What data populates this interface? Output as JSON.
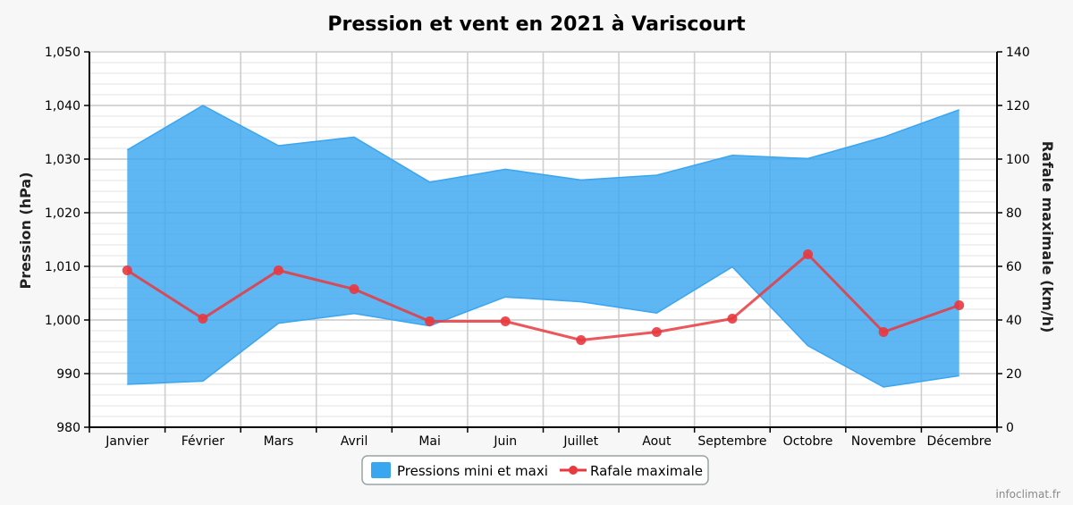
{
  "chart_data": {
    "type": "area",
    "title": "Pression et vent en 2021 à Variscourt",
    "categories": [
      "Janvier",
      "Février",
      "Mars",
      "Avril",
      "Mai",
      "Juin",
      "Juillet",
      "Aout",
      "Septembre",
      "Octobre",
      "Novembre",
      "Décembre"
    ],
    "y_left": {
      "label": "Pression (hPa)",
      "lim": [
        980,
        1050
      ],
      "ticks": [
        980,
        990,
        1000,
        1010,
        1020,
        1030,
        1040,
        1050
      ],
      "tick_labels": [
        "980",
        "990",
        "1,000",
        "1,010",
        "1,020",
        "1,030",
        "1,040",
        "1,050"
      ]
    },
    "y_right": {
      "label": "Rafale maximale (km/h)",
      "lim": [
        0,
        140
      ],
      "ticks": [
        0,
        20,
        40,
        60,
        80,
        100,
        120,
        140
      ],
      "tick_labels": [
        "0",
        "20",
        "40",
        "60",
        "80",
        "100",
        "120",
        "140"
      ]
    },
    "series": [
      {
        "name": "Pressions mini et maxi",
        "kind": "range-area",
        "axis": "left",
        "color": "#3aa6f0",
        "min": [
          988,
          988.6,
          999.4,
          1001.2,
          998.9,
          1004.3,
          1003.4,
          1001.3,
          1009.9,
          995.2,
          987.5,
          989.6
        ],
        "max": [
          1031.7,
          1040,
          1032.5,
          1034.1,
          1025.7,
          1028.1,
          1026.1,
          1027,
          1030.7,
          1030.1,
          1034.1,
          1039.2
        ]
      },
      {
        "name": "Rafale maximale",
        "kind": "line",
        "axis": "right",
        "color": "#e8393f",
        "values": [
          58.5,
          40.5,
          58.5,
          51.5,
          39.5,
          39.5,
          32.5,
          35.5,
          40.5,
          64.5,
          35.5,
          45.5
        ]
      }
    ],
    "grid": true,
    "legend_position": "bottom-center"
  },
  "credit": "infoclimat.fr"
}
